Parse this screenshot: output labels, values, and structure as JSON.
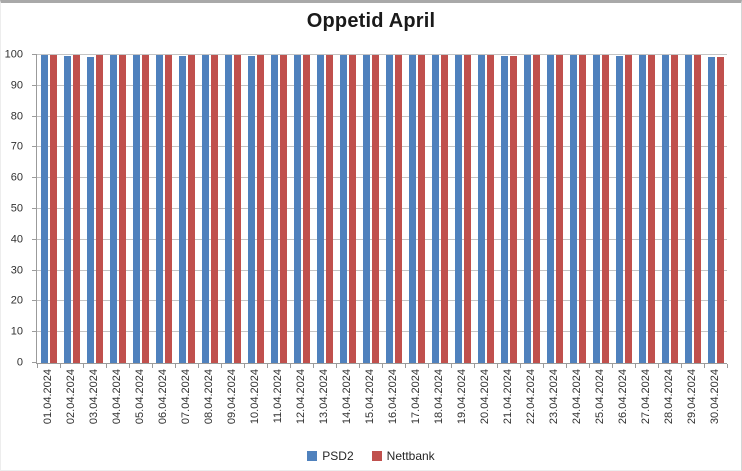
{
  "chart_data": {
    "type": "bar",
    "title": "Oppetid April",
    "categories": [
      "01.04.2024",
      "02.04.2024",
      "03.04.2024",
      "04.04.2024",
      "05.04.2024",
      "06.04.2024",
      "07.04.2024",
      "08.04.2024",
      "09.04.2024",
      "10.04.2024",
      "11.04.2024",
      "12.04.2024",
      "13.04.2024",
      "14.04.2024",
      "15.04.2024",
      "16.04.2024",
      "17.04.2024",
      "18.04.2024",
      "19.04.2024",
      "20.04.2024",
      "21.04.2024",
      "22.04.2024",
      "23.04.2024",
      "24.04.2024",
      "25.04.2024",
      "26.04.2024",
      "27.04.2024",
      "28.04.2024",
      "29.04.2024",
      "30.04.2024"
    ],
    "series": [
      {
        "name": "PSD2",
        "color": "#4F81BD",
        "values": [
          100,
          99.7,
          99.2,
          100,
          100,
          100,
          99.6,
          100,
          100,
          99.7,
          100,
          100,
          100,
          100,
          100,
          100,
          100,
          100,
          100,
          100,
          99.6,
          100,
          100,
          100,
          100,
          99.6,
          100,
          100,
          100,
          99.3
        ]
      },
      {
        "name": "Nettbank",
        "color": "#C0504D",
        "values": [
          100,
          100,
          100,
          100,
          100,
          100,
          100,
          100,
          100,
          100,
          100,
          100,
          100,
          100,
          100,
          100,
          100,
          100,
          100,
          100,
          99.7,
          100,
          100,
          100,
          100,
          100,
          100,
          100,
          100,
          99.5
        ]
      }
    ],
    "xlabel": "",
    "ylabel": "",
    "ylim": [
      0,
      100
    ],
    "yticks": [
      0,
      10,
      20,
      30,
      40,
      50,
      60,
      70,
      80,
      90,
      100
    ],
    "grid": true,
    "legend_position": "bottom"
  }
}
